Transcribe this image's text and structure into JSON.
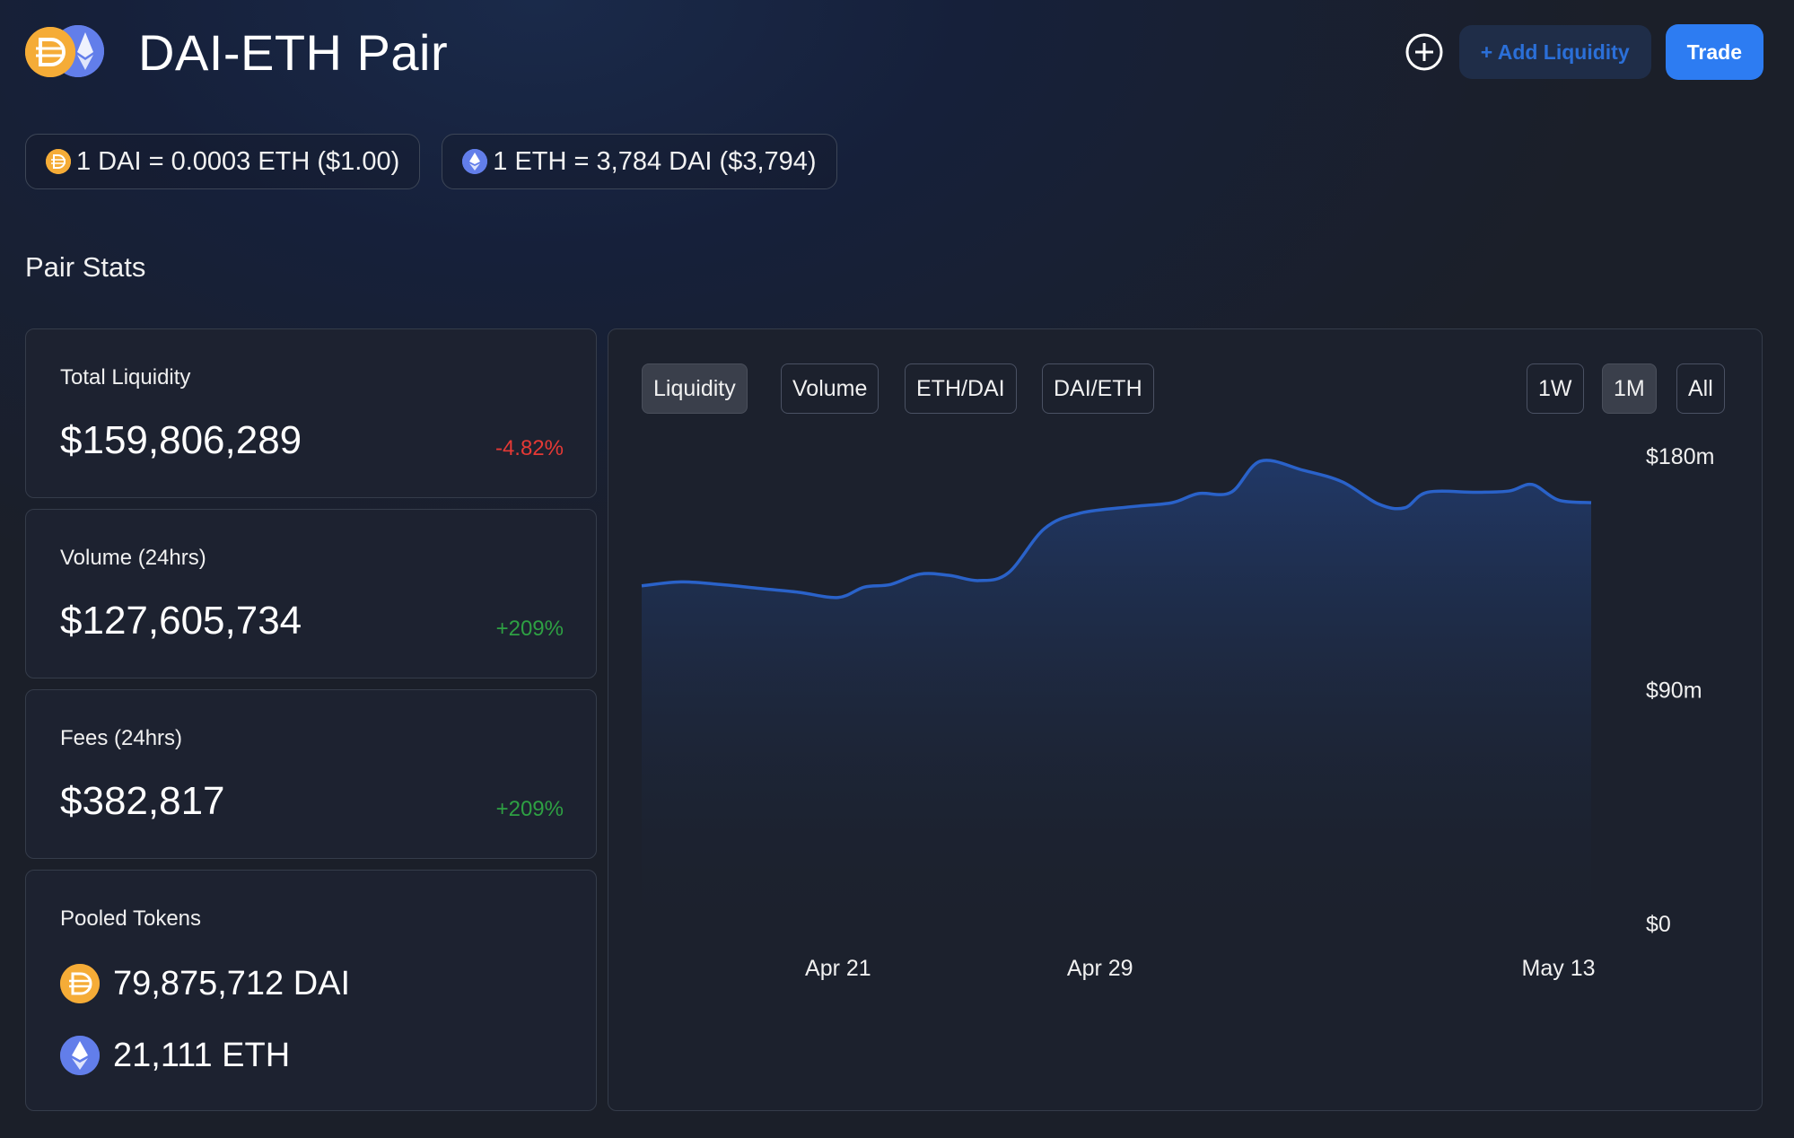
{
  "header": {
    "title": "DAI-ETH Pair",
    "add_liquidity_label": "+ Add Liquidity",
    "trade_label": "Trade",
    "icons": [
      "dai-icon",
      "eth-icon",
      "plus-circle-icon"
    ]
  },
  "prices": {
    "dai_rate": "1 DAI = 0.0003 ETH ($1.00)",
    "eth_rate": "1 ETH = 3,784 DAI ($3,794)"
  },
  "section_title": "Pair Stats",
  "stats": {
    "liquidity": {
      "label": "Total Liquidity",
      "value": "$159,806,289",
      "change": "-4.82%"
    },
    "volume": {
      "label": "Volume (24hrs)",
      "value": "$127,605,734",
      "change": "+209%"
    },
    "fees": {
      "label": "Fees (24hrs)",
      "value": "$382,817",
      "change": "+209%"
    },
    "pooled": {
      "label": "Pooled Tokens",
      "dai": "79,875,712 DAI",
      "eth": "21,111 ETH"
    }
  },
  "chart": {
    "tabs": [
      "Liquidity",
      "Volume",
      "ETH/DAI",
      "DAI/ETH"
    ],
    "active_tab": "Liquidity",
    "ranges": [
      "1W",
      "1M",
      "All"
    ],
    "active_range": "1M"
  },
  "colors": {
    "accent": "#2d7cf2",
    "line": "#2a62c9",
    "negative": "#e53935",
    "positive": "#2ea043",
    "dai": "#f5ac37",
    "eth": "#627eea"
  },
  "chart_data": {
    "type": "area",
    "title": "",
    "xlabel": "",
    "ylabel": "",
    "ylim": [
      0,
      180
    ],
    "y_unit": "millions USD",
    "y_ticks": [
      "$180m",
      "$90m",
      "$0"
    ],
    "y_tick_values": [
      180,
      90,
      0
    ],
    "x_ticks": [
      "Apr 21",
      "Apr 29",
      "May 13"
    ],
    "x_tick_positions": [
      6,
      14,
      28
    ],
    "x_range": [
      0,
      31
    ],
    "grid": false,
    "series": [
      {
        "values": [
          [
            0,
            130
          ],
          [
            1.2,
            131.5
          ],
          [
            2.4,
            130.5
          ],
          [
            3.6,
            129
          ],
          [
            4.8,
            127.5
          ],
          [
            6,
            125.5
          ],
          [
            6.8,
            129.5
          ],
          [
            7.6,
            130.5
          ],
          [
            8.5,
            134.5
          ],
          [
            9.4,
            134
          ],
          [
            10.3,
            132
          ],
          [
            11.2,
            135
          ],
          [
            12.3,
            152
          ],
          [
            13.4,
            158
          ],
          [
            15,
            160.5
          ],
          [
            16.2,
            162
          ],
          [
            17,
            165.5
          ],
          [
            18,
            166
          ],
          [
            18.9,
            178
          ],
          [
            20.2,
            174.5
          ],
          [
            21.4,
            170
          ],
          [
            22.5,
            161.5
          ],
          [
            23.3,
            160
          ],
          [
            24,
            166
          ],
          [
            25.5,
            166
          ],
          [
            26.5,
            166.5
          ],
          [
            27.2,
            169
          ],
          [
            28,
            163
          ],
          [
            29,
            162
          ]
        ]
      }
    ]
  }
}
